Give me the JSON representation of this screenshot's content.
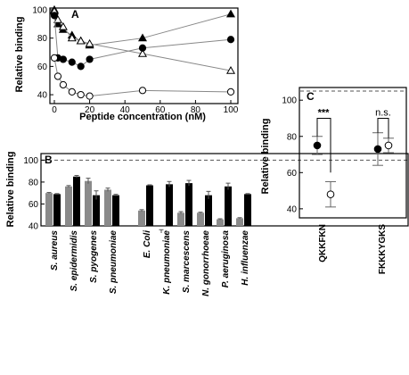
{
  "chart_data": [
    {
      "panel": "A",
      "type": "line",
      "xlabel": "Peptide concentration (nM)",
      "ylabel": "Relative binding",
      "xlim": [
        0,
        100
      ],
      "ylim": [
        35,
        100
      ],
      "xticks": [
        0,
        20,
        40,
        60,
        80,
        100
      ],
      "yticks": [
        40,
        60,
        80,
        100
      ],
      "series": [
        {
          "marker": "filled-triangle",
          "x": [
            0,
            2,
            5,
            10,
            15,
            20,
            50,
            100
          ],
          "y": [
            100,
            90,
            86,
            82,
            78,
            75,
            80,
            97
          ]
        },
        {
          "marker": "open-triangle",
          "x": [
            0,
            2,
            5,
            10,
            15,
            20,
            50,
            100
          ],
          "y": [
            99,
            93,
            88,
            80,
            78,
            76,
            69,
            57
          ]
        },
        {
          "marker": "filled-circle",
          "x": [
            0,
            2,
            5,
            10,
            15,
            20,
            50,
            100
          ],
          "y": [
            96,
            66,
            65,
            63,
            60,
            65,
            73,
            79
          ]
        },
        {
          "marker": "open-circle",
          "x": [
            0,
            2,
            5,
            10,
            15,
            20,
            50,
            100
          ],
          "y": [
            66,
            53,
            47,
            42,
            40,
            39,
            43,
            42
          ]
        }
      ]
    },
    {
      "panel": "B",
      "type": "bar",
      "ylabel": "Relative binding",
      "ylim": [
        40,
        106
      ],
      "yticks": [
        40,
        60,
        80,
        100
      ],
      "reference_line": 100,
      "categories": [
        "S. aureus",
        "S. epidermidis",
        "S. pyogenes",
        "S. pneumoniae",
        "E. Coli",
        "K. pneumoniae",
        "S. marcescens",
        "N. gonorrhoeae",
        "P. aeruginosa",
        "H. influenzae"
      ],
      "series": [
        {
          "color": "#8a8a8a",
          "values": [
            70,
            76,
            81,
            73,
            54,
            35,
            52,
            52,
            46,
            47
          ],
          "errors": [
            0.5,
            0.8,
            2.5,
            1.5,
            0.8,
            1.5,
            1.0,
            0.5,
            0.5,
            0.5
          ]
        },
        {
          "color": "#000000",
          "values": [
            69,
            85,
            68,
            68,
            77,
            78,
            79,
            68,
            76,
            69
          ],
          "errors": [
            0.5,
            1.0,
            4.0,
            0.8,
            0.5,
            2.5,
            2.5,
            3.5,
            3.0,
            0.5
          ]
        }
      ]
    },
    {
      "panel": "C",
      "type": "scatter",
      "ylabel": "Relative binding",
      "ylim": [
        35,
        107
      ],
      "yticks": [
        40,
        60,
        80,
        100
      ],
      "reference_line": 105,
      "categories": [
        "QKKFKN",
        "FKKKYGKS"
      ],
      "series": [
        {
          "marker": "filled-circle",
          "values": [
            75,
            73
          ],
          "errors": [
            5,
            9
          ]
        },
        {
          "marker": "open-circle",
          "values": [
            48,
            75
          ],
          "errors": [
            7,
            4
          ]
        }
      ],
      "annotations": [
        "***",
        "n.s."
      ]
    }
  ],
  "labels": {
    "panelA": "A",
    "panelB": "B",
    "panelC": "C",
    "ylabelA": "Relative binding",
    "xlabelA": "Peptide concentration (nM)",
    "ylabelB": "Relative  binding",
    "ylabelC": "Relative  binding",
    "sigC1": "***",
    "sigC2": "n.s."
  },
  "colors": {
    "gray_bar": "#8a8a8a",
    "black_bar": "#000000",
    "line": "#888888"
  }
}
